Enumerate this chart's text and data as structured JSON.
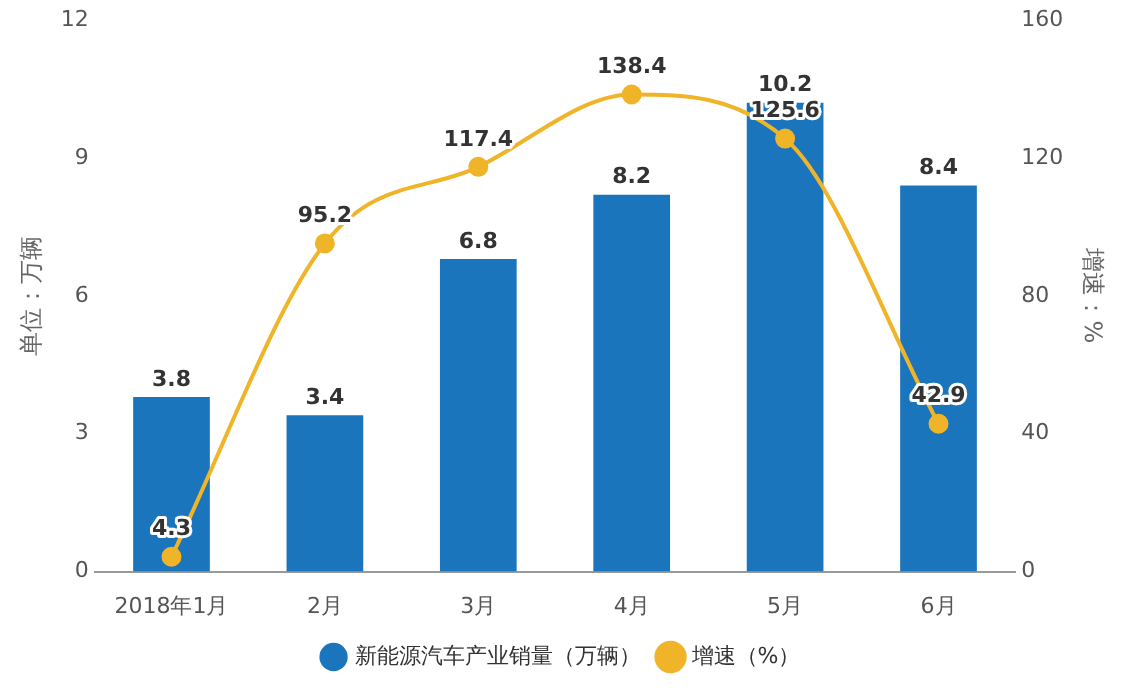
{
  "chart_data": {
    "type": "bar",
    "categories": [
      "2018年1月",
      "2月",
      "3月",
      "4月",
      "5月",
      "6月"
    ],
    "ylabel": "单位：万辆",
    "y2label": "增速：%",
    "series": [
      {
        "name": "新能源汽车产业销量（万辆）",
        "color": "#1b75bc",
        "values": [
          3.8,
          3.4,
          6.8,
          8.2,
          10.2,
          8.4
        ]
      },
      {
        "name": "增速（%）",
        "type": "line",
        "axis": "y2",
        "color": "#f0b429",
        "values": [
          4.3,
          95.2,
          117.4,
          138.4,
          125.6,
          42.9
        ]
      }
    ],
    "ylim": [
      0,
      12
    ],
    "yticks": [
      0,
      3,
      6,
      9,
      12
    ],
    "y2lim": [
      0,
      160
    ],
    "y2ticks": [
      0,
      40,
      80,
      120,
      160
    ],
    "data_labels": true,
    "legend": "bottom",
    "marker": "circle",
    "grid": false
  }
}
